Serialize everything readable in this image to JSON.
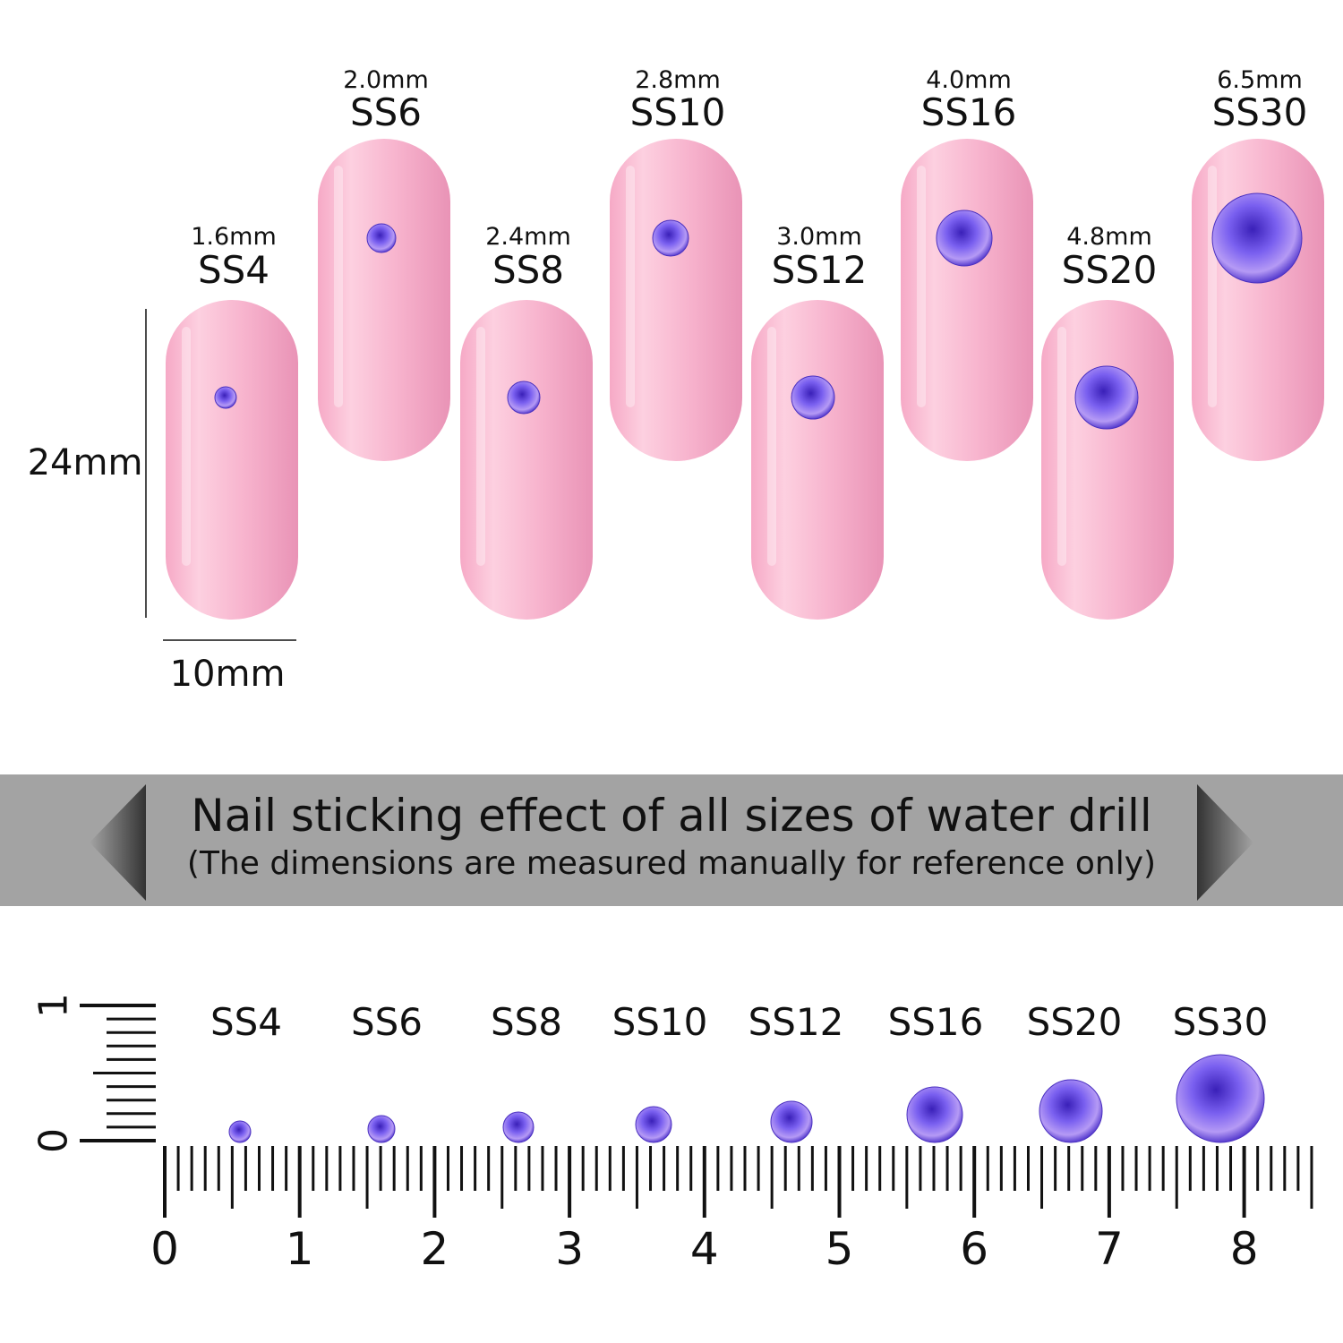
{
  "nails": [
    {
      "size": "SS4",
      "mm": "1.6mm",
      "diameter_mm": 1.6,
      "row": "low"
    },
    {
      "size": "SS6",
      "mm": "2.0mm",
      "diameter_mm": 2.0,
      "row": "high"
    },
    {
      "size": "SS8",
      "mm": "2.4mm",
      "diameter_mm": 2.4,
      "row": "low"
    },
    {
      "size": "SS10",
      "mm": "2.8mm",
      "diameter_mm": 2.8,
      "row": "high"
    },
    {
      "size": "SS12",
      "mm": "3.0mm",
      "diameter_mm": 3.0,
      "row": "low"
    },
    {
      "size": "SS16",
      "mm": "4.0mm",
      "diameter_mm": 4.0,
      "row": "high"
    },
    {
      "size": "SS20",
      "mm": "4.8mm",
      "diameter_mm": 4.8,
      "row": "low"
    },
    {
      "size": "SS30",
      "mm": "6.5mm",
      "diameter_mm": 6.5,
      "row": "high"
    }
  ],
  "dimensions": {
    "height_label": "24mm",
    "width_label": "10mm"
  },
  "banner": {
    "title": "Nail sticking effect of all sizes of water drill",
    "subtitle": "(The dimensions are measured manually for reference only)"
  },
  "ruler": {
    "labels": [
      "0",
      "1",
      "2",
      "3",
      "4",
      "5",
      "6",
      "7",
      "8"
    ],
    "vertical_labels": [
      "0",
      "1"
    ],
    "gems": [
      "SS4",
      "SS6",
      "SS8",
      "SS10",
      "SS12",
      "SS16",
      "SS20",
      "SS30"
    ]
  },
  "colors": {
    "nail": "#f7b8d0",
    "gem": "#6a4fe0",
    "banner": "#a3a3a3"
  }
}
